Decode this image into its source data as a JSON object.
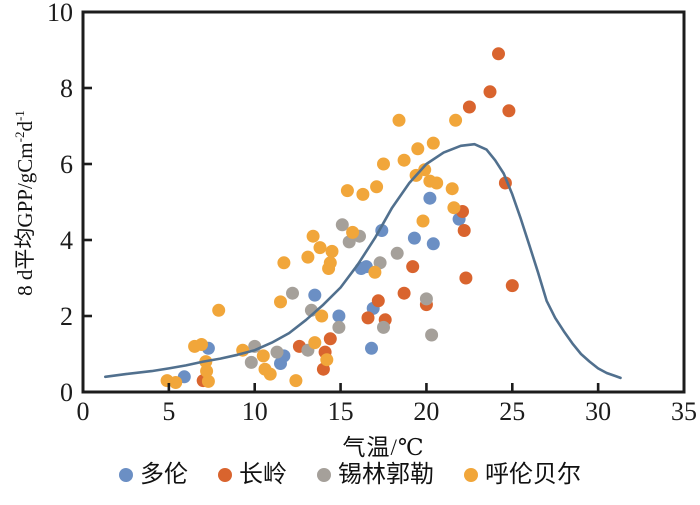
{
  "chart_data": {
    "type": "scatter",
    "title": "",
    "xlabel": "气温/℃",
    "ylabel": "8 d平均GPP/gCm-2d-1",
    "ylabel_parts": {
      "main": "8 d平均GPP/gCm",
      "sup1": "-2",
      "mid": "d",
      "sup2": "-1"
    },
    "xlim": [
      0,
      35
    ],
    "ylim": [
      0,
      10
    ],
    "xticks": [
      0,
      5,
      10,
      15,
      20,
      25,
      30,
      35
    ],
    "yticks": [
      0,
      2,
      4,
      6,
      8,
      10
    ],
    "grid": false,
    "legend_position": "bottom",
    "series": [
      {
        "name": "多伦",
        "color": "#6b8fc4",
        "points": [
          [
            5.9,
            0.4
          ],
          [
            7.3,
            1.15
          ],
          [
            11.5,
            0.75
          ],
          [
            11.7,
            0.95
          ],
          [
            13.5,
            2.55
          ],
          [
            14.9,
            2.0
          ],
          [
            16.9,
            2.2
          ],
          [
            16.8,
            1.15
          ],
          [
            16.2,
            3.25
          ],
          [
            16.5,
            3.3
          ],
          [
            17.4,
            4.25
          ],
          [
            19.3,
            4.05
          ],
          [
            20.4,
            3.9
          ],
          [
            20.2,
            5.1
          ],
          [
            21.9,
            4.55
          ]
        ]
      },
      {
        "name": "长岭",
        "color": "#d9642e",
        "points": [
          [
            7.0,
            0.3
          ],
          [
            12.6,
            1.2
          ],
          [
            14.0,
            0.6
          ],
          [
            14.1,
            1.05
          ],
          [
            14.4,
            1.4
          ],
          [
            16.6,
            1.95
          ],
          [
            17.6,
            1.9
          ],
          [
            17.2,
            2.4
          ],
          [
            18.7,
            2.6
          ],
          [
            20.0,
            2.3
          ],
          [
            19.2,
            3.3
          ],
          [
            22.3,
            3.0
          ],
          [
            25.0,
            2.8
          ],
          [
            22.2,
            4.25
          ],
          [
            22.1,
            4.75
          ],
          [
            24.6,
            5.5
          ],
          [
            22.5,
            7.5
          ],
          [
            23.7,
            7.9
          ],
          [
            24.8,
            7.4
          ],
          [
            24.2,
            8.9
          ]
        ]
      },
      {
        "name": "锡林郭勒",
        "color": "#a5a09a",
        "points": [
          [
            9.8,
            0.78
          ],
          [
            10.0,
            1.2
          ],
          [
            11.3,
            1.05
          ],
          [
            13.1,
            1.1
          ],
          [
            14.9,
            1.7
          ],
          [
            17.5,
            1.7
          ],
          [
            20.3,
            1.5
          ],
          [
            20.0,
            2.45
          ],
          [
            12.2,
            2.6
          ],
          [
            13.3,
            2.15
          ],
          [
            17.3,
            3.4
          ],
          [
            18.3,
            3.65
          ],
          [
            15.1,
            4.4
          ],
          [
            15.5,
            3.95
          ],
          [
            16.1,
            4.1
          ]
        ]
      },
      {
        "name": "呼伦贝尔",
        "color": "#f1a63a",
        "points": [
          [
            4.9,
            0.3
          ],
          [
            5.4,
            0.25
          ],
          [
            6.5,
            1.2
          ],
          [
            6.9,
            1.25
          ],
          [
            7.15,
            0.8
          ],
          [
            7.2,
            0.55
          ],
          [
            7.3,
            0.28
          ],
          [
            7.9,
            2.15
          ],
          [
            9.3,
            1.1
          ],
          [
            10.5,
            0.95
          ],
          [
            10.6,
            0.6
          ],
          [
            10.9,
            0.47
          ],
          [
            12.4,
            0.3
          ],
          [
            13.5,
            1.3
          ],
          [
            14.2,
            0.85
          ],
          [
            11.5,
            2.37
          ],
          [
            13.9,
            2.0
          ],
          [
            11.7,
            3.4
          ],
          [
            13.1,
            3.55
          ],
          [
            13.4,
            4.1
          ],
          [
            13.8,
            3.8
          ],
          [
            14.3,
            3.25
          ],
          [
            14.4,
            3.4
          ],
          [
            14.5,
            3.7
          ],
          [
            15.7,
            4.2
          ],
          [
            17.0,
            3.15
          ],
          [
            15.4,
            5.3
          ],
          [
            16.3,
            5.2
          ],
          [
            17.1,
            5.4
          ],
          [
            17.5,
            6.0
          ],
          [
            18.7,
            6.1
          ],
          [
            18.4,
            7.15
          ],
          [
            19.5,
            6.4
          ],
          [
            20.4,
            6.55
          ],
          [
            21.7,
            7.15
          ],
          [
            19.4,
            5.7
          ],
          [
            19.9,
            5.85
          ],
          [
            20.2,
            5.55
          ],
          [
            20.6,
            5.5
          ],
          [
            21.5,
            5.35
          ],
          [
            21.6,
            4.85
          ],
          [
            19.8,
            4.5
          ]
        ]
      }
    ],
    "fit_curve": {
      "color": "#51708e",
      "points": [
        [
          1.3,
          0.4
        ],
        [
          2.5,
          0.47
        ],
        [
          4,
          0.55
        ],
        [
          5,
          0.62
        ],
        [
          6,
          0.7
        ],
        [
          7,
          0.8
        ],
        [
          8,
          0.88
        ],
        [
          9,
          0.98
        ],
        [
          10,
          1.1
        ],
        [
          11,
          1.3
        ],
        [
          12,
          1.55
        ],
        [
          13,
          1.9
        ],
        [
          14,
          2.3
        ],
        [
          15,
          2.75
        ],
        [
          16,
          3.35
        ],
        [
          17,
          4.05
        ],
        [
          18,
          4.85
        ],
        [
          19,
          5.5
        ],
        [
          20,
          6.0
        ],
        [
          21,
          6.3
        ],
        [
          22,
          6.48
        ],
        [
          22.8,
          6.52
        ],
        [
          23.5,
          6.38
        ],
        [
          24,
          6.1
        ],
        [
          24.5,
          5.75
        ],
        [
          25,
          5.2
        ],
        [
          25.5,
          4.55
        ],
        [
          26,
          3.85
        ],
        [
          26.5,
          3.15
        ],
        [
          27,
          2.4
        ],
        [
          27.5,
          1.95
        ],
        [
          28,
          1.6
        ],
        [
          28.5,
          1.28
        ],
        [
          29,
          1.0
        ],
        [
          29.5,
          0.8
        ],
        [
          30,
          0.62
        ],
        [
          30.5,
          0.5
        ],
        [
          31,
          0.42
        ],
        [
          31.3,
          0.37
        ]
      ]
    }
  },
  "colors": {
    "axis": "#1c1c1c",
    "background": "#ffffff"
  }
}
